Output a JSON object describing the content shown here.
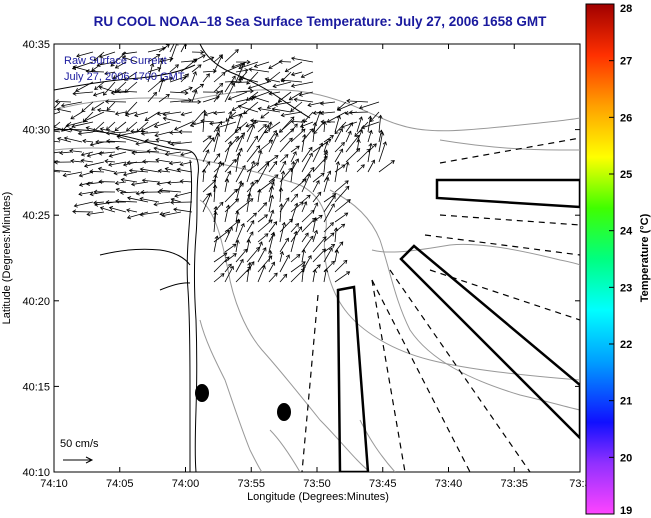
{
  "title": "RU COOL  NOAA–18  Sea Surface Temperature:  July 27, 2006 1658 GMT",
  "map": {
    "legend_line1": "Raw Surface Current",
    "legend_line2": "July 27, 2006 1700 GMT",
    "scale_label": "50 cm/s",
    "xlabel": "Longitude (Degrees:Minutes)",
    "ylabel": "Latitude (Degrees:Minutes)",
    "x_ticks": [
      "74:10",
      "74:05",
      "74:00",
      "73:55",
      "73:50",
      "73:45",
      "73:40",
      "73:35",
      "73:3"
    ],
    "y_ticks": [
      "40:35",
      "40:30",
      "40:25",
      "40:20",
      "40:15",
      "40:10"
    ]
  },
  "colorbar": {
    "label": "Temperature (°C)",
    "ticks": [
      "28",
      "27",
      "26",
      "25",
      "24",
      "23",
      "22",
      "21",
      "20",
      "19"
    ],
    "range": [
      19,
      28
    ],
    "colors": [
      "#ff44ff",
      "#9030ff",
      "#1010ff",
      "#00a0ff",
      "#00ffff",
      "#00ff80",
      "#40ff00",
      "#ffff00",
      "#ffa000",
      "#ff3000",
      "#a00000"
    ]
  },
  "colors": {
    "title": "#1a1a9e",
    "legend_text": "#1a1a9e",
    "contour": "#999999",
    "coast": "#000000"
  }
}
